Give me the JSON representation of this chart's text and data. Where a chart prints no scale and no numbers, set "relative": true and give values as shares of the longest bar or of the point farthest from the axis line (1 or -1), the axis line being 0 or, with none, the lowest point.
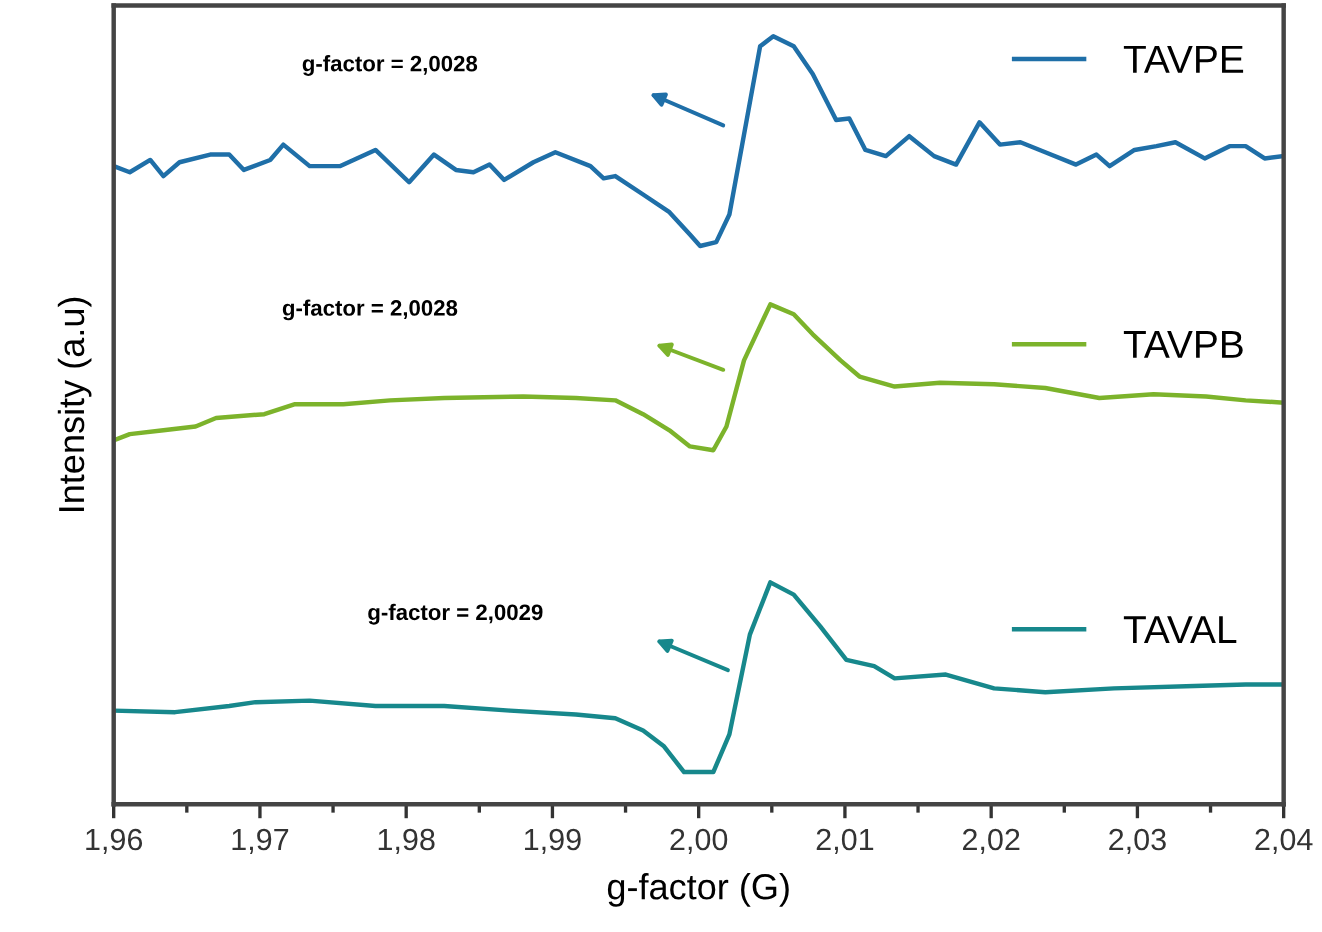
{
  "chart_data": {
    "type": "line",
    "relative": true,
    "xlabel": "g-factor (G)",
    "ylabel": "Intensity (a.u)",
    "xlim": [
      1.96,
      2.04
    ],
    "xticks": [
      {
        "value": 1.96,
        "label": "1,96"
      },
      {
        "value": 1.97,
        "label": "1,97"
      },
      {
        "value": 1.98,
        "label": "1,98"
      },
      {
        "value": 1.99,
        "label": "1,99"
      },
      {
        "value": 2.0,
        "label": "2,00"
      },
      {
        "value": 2.01,
        "label": "2,01"
      },
      {
        "value": 2.02,
        "label": "2,02"
      },
      {
        "value": 2.03,
        "label": "2,03"
      },
      {
        "value": 2.04,
        "label": "2,04"
      }
    ],
    "tick_labels": "x",
    "grid": false,
    "legend": "right",
    "marker": "none",
    "line_style": "solid",
    "series": [
      {
        "name": "TAVPE",
        "color": "#1f6fa8",
        "x": [
          1.96,
          1.9611,
          1.9625,
          1.9634,
          1.9645,
          1.9666,
          1.9679,
          1.9689,
          1.9707,
          1.9716,
          1.9734,
          1.9755,
          1.9779,
          1.9802,
          1.9819,
          1.9834,
          1.9846,
          1.9857,
          1.9867,
          1.9887,
          1.9902,
          1.9926,
          1.9935,
          1.9943,
          1.9962,
          1.998,
          1.9994,
          2.0001,
          2.0012,
          2.0021,
          2.0031,
          2.0042,
          2.0051,
          2.0065,
          2.0078,
          2.0094,
          2.0103,
          2.0114,
          2.0128,
          2.0144,
          2.0161,
          2.0176,
          2.0192,
          2.0206,
          2.022,
          2.0237,
          2.0258,
          2.0272,
          2.0281,
          2.0298,
          2.0313,
          2.0326,
          2.0346,
          2.0363,
          2.0374,
          2.0387,
          2.04
        ],
        "values": [
          0.831,
          0.823,
          0.839,
          0.818,
          0.836,
          0.846,
          0.846,
          0.826,
          0.839,
          0.859,
          0.831,
          0.831,
          0.852,
          0.81,
          0.846,
          0.826,
          0.823,
          0.833,
          0.813,
          0.836,
          0.849,
          0.831,
          0.815,
          0.818,
          0.794,
          0.771,
          0.742,
          0.727,
          0.732,
          0.768,
          0.872,
          0.987,
          1.0,
          0.987,
          0.951,
          0.891,
          0.893,
          0.852,
          0.844,
          0.87,
          0.844,
          0.833,
          0.888,
          0.859,
          0.862,
          0.849,
          0.833,
          0.846,
          0.831,
          0.852,
          0.857,
          0.862,
          0.841,
          0.857,
          0.857,
          0.841,
          0.844
        ]
      },
      {
        "name": "TAVPB",
        "color": "#7cb32b",
        "x": [
          1.96,
          1.9611,
          1.9634,
          1.9656,
          1.967,
          1.9703,
          1.9724,
          1.9757,
          1.9789,
          1.9826,
          1.988,
          1.9916,
          1.9943,
          1.9962,
          1.998,
          1.9994,
          2.001,
          2.0019,
          2.0031,
          2.0049,
          2.0065,
          2.0078,
          2.0097,
          2.011,
          2.0134,
          2.0165,
          2.0202,
          2.0237,
          2.0274,
          2.0311,
          2.0347,
          2.0374,
          2.04
        ],
        "values": [
          0.474,
          0.482,
          0.487,
          0.492,
          0.503,
          0.508,
          0.521,
          0.521,
          0.526,
          0.529,
          0.531,
          0.529,
          0.526,
          0.508,
          0.487,
          0.466,
          0.461,
          0.492,
          0.578,
          0.651,
          0.638,
          0.612,
          0.578,
          0.557,
          0.544,
          0.549,
          0.547,
          0.542,
          0.529,
          0.534,
          0.531,
          0.526,
          0.523
        ]
      },
      {
        "name": "TAVAL",
        "color": "#17888c",
        "x": [
          1.96,
          1.9642,
          1.9679,
          1.9697,
          1.9734,
          1.9779,
          1.9826,
          1.9871,
          1.9916,
          1.9943,
          1.9962,
          1.9976,
          1.999,
          2.001,
          2.0021,
          2.0035,
          2.0049,
          2.0065,
          2.0083,
          2.0101,
          2.012,
          2.0134,
          2.0169,
          2.0202,
          2.0237,
          2.0284,
          2.0339,
          2.0374,
          2.04
        ],
        "values": [
          0.122,
          0.12,
          0.128,
          0.133,
          0.135,
          0.128,
          0.128,
          0.122,
          0.117,
          0.112,
          0.096,
          0.076,
          0.042,
          0.042,
          0.091,
          0.221,
          0.289,
          0.273,
          0.232,
          0.188,
          0.18,
          0.164,
          0.169,
          0.151,
          0.146,
          0.151,
          0.154,
          0.156,
          0.156
        ]
      }
    ],
    "annotations": [
      "g-factor = 2,0028",
      "g-factor = 2,0028",
      "g-factor = 2,0029"
    ]
  }
}
